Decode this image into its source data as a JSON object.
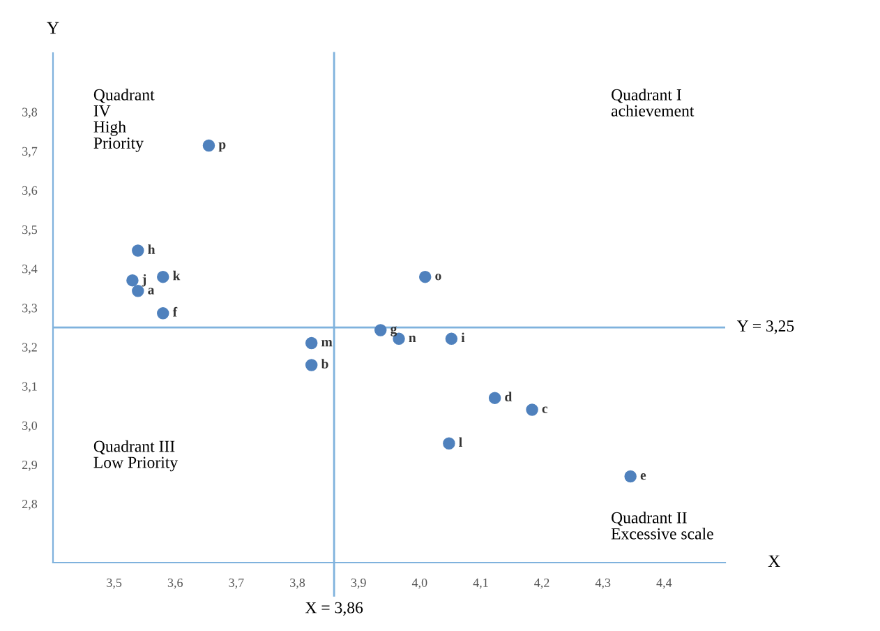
{
  "chart_data": {
    "type": "scatter",
    "xlabel": "X",
    "ylabel": "Y",
    "x": [
      3.655,
      3.539,
      3.53,
      3.539,
      3.58,
      3.58,
      3.823,
      3.823,
      3.936,
      3.966,
      4.052,
      4.009,
      4.123,
      4.184,
      4.048,
      4.345
    ],
    "series": [
      {
        "color": "#4f81bd",
        "values": [
          3.714,
          3.446,
          3.37,
          3.343,
          3.379,
          3.286,
          3.21,
          3.154,
          3.243,
          3.221,
          3.221,
          3.379,
          3.07,
          3.04,
          2.954,
          2.87
        ],
        "value_labels": [
          "p",
          "h",
          "j",
          "a",
          "k",
          "f",
          "m",
          "b",
          "g",
          "n",
          "i",
          "o",
          "d",
          "c",
          "l",
          "e"
        ]
      }
    ],
    "xlim": [
      3.4,
      4.5
    ],
    "ylim": [
      2.65,
      3.95
    ],
    "xticks": [
      {
        "value": 3.5,
        "label": "3,5"
      },
      {
        "value": 3.6,
        "label": "3,6"
      },
      {
        "value": 3.7,
        "label": "3,7"
      },
      {
        "value": 3.8,
        "label": "3,8"
      },
      {
        "value": 3.9,
        "label": "3,9"
      },
      {
        "value": 4.0,
        "label": "4,0"
      },
      {
        "value": 4.1,
        "label": "4,1"
      },
      {
        "value": 4.2,
        "label": "4,2"
      },
      {
        "value": 4.3,
        "label": "4,3"
      },
      {
        "value": 4.4,
        "label": "4,4"
      }
    ],
    "yticks": [
      {
        "value": 2.8,
        "label": "2,8"
      },
      {
        "value": 2.9,
        "label": "2,9"
      },
      {
        "value": 3.0,
        "label": "3,0"
      },
      {
        "value": 3.1,
        "label": "3,1"
      },
      {
        "value": 3.2,
        "label": "3,2"
      },
      {
        "value": 3.3,
        "label": "3,3"
      },
      {
        "value": 3.4,
        "label": "3,4"
      },
      {
        "value": 3.5,
        "label": "3,5"
      },
      {
        "value": 3.6,
        "label": "3,6"
      },
      {
        "value": 3.7,
        "label": "3,7"
      },
      {
        "value": 3.8,
        "label": "3,8"
      }
    ],
    "ref_lines": [
      {
        "axis": "y",
        "value": 3.25,
        "label": "Y = 3,25",
        "color": "#7fb2dd"
      },
      {
        "axis": "x",
        "value": 3.86,
        "label": "X = 3,86",
        "color": "#7fb2dd"
      }
    ],
    "annotations": [
      "Quadrant\nIV\nHigh\nPriority",
      "Quadrant I\nachievement",
      "Quadrant III\nLow Priority",
      "Quadrant II\nExcessive scale"
    ],
    "marker": "circle",
    "grid": false
  }
}
